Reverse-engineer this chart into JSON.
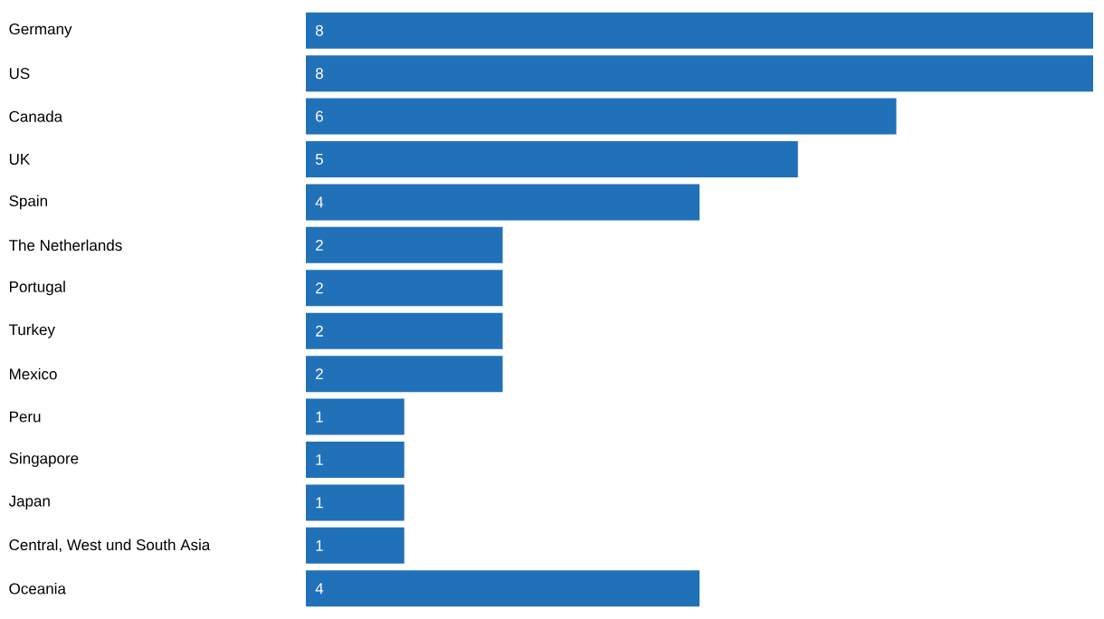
{
  "chart_data": {
    "type": "bar",
    "orientation": "horizontal",
    "categories": [
      "Germany",
      "US",
      "Canada",
      "UK",
      "Spain",
      "The Netherlands",
      "Portugal",
      "Turkey",
      "Mexico",
      "Peru",
      "Singapore",
      "Japan",
      "Central, West und South Asia",
      "Oceania"
    ],
    "values": [
      8,
      8,
      6,
      5,
      4,
      2,
      2,
      2,
      2,
      1,
      1,
      1,
      1,
      4
    ],
    "color": "#2171b9",
    "xlim": [
      0,
      8
    ],
    "data_labels": true,
    "tick_labels": "y"
  }
}
